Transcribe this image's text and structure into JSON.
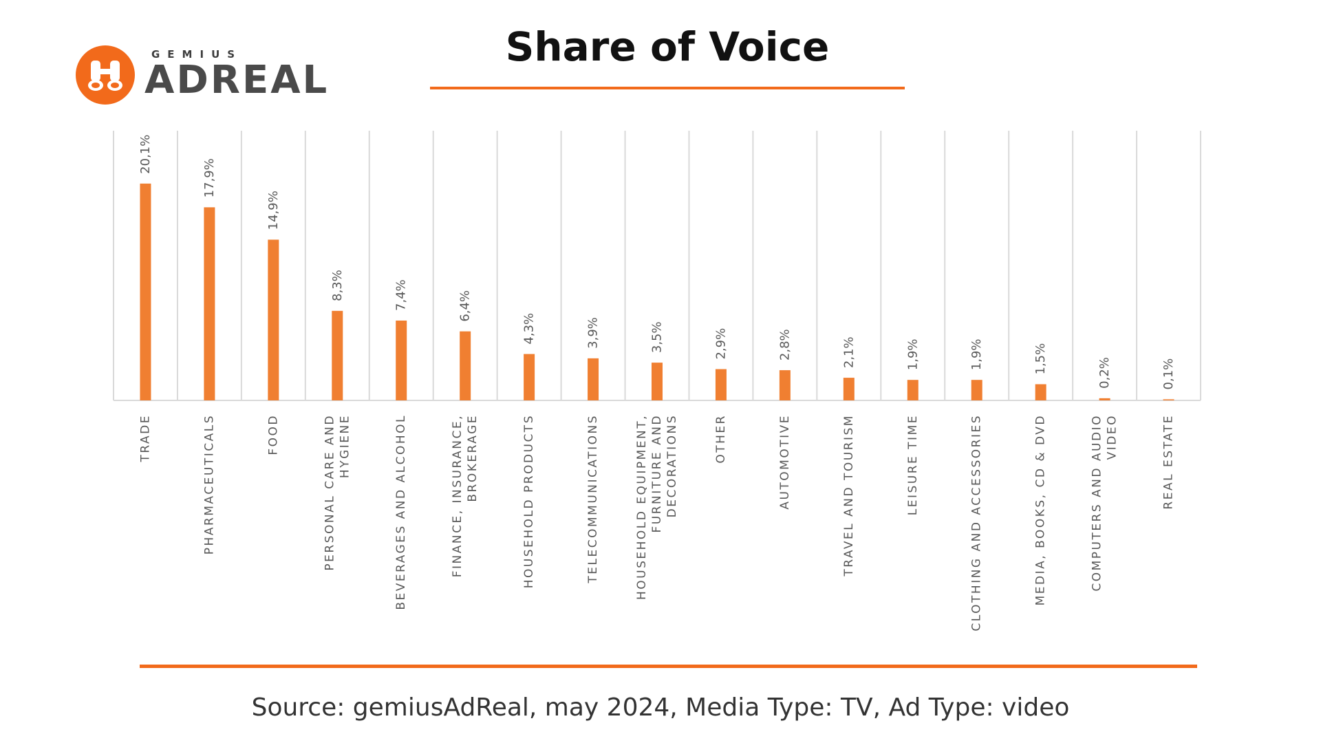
{
  "colors": {
    "accent": "#f07f31",
    "rule": "#f26a1b",
    "grid": "#d9d9d9",
    "label": "#595959"
  },
  "logo": {
    "brand_small": "GEMIUS",
    "brand_large": "ADREAL",
    "icon": "binoculars-icon"
  },
  "title": "Share of Voice",
  "source": "Source: gemiusAdReal, may 2024, Media Type: TV, Ad Type: video",
  "chart_data": {
    "type": "bar",
    "title": "Share of Voice",
    "xlabel": "",
    "ylabel": "",
    "ylim": [
      0,
      25
    ],
    "grid": true,
    "categories": [
      "TRADE",
      "PHARMACEUTICALS",
      "FOOD",
      "PERSONAL CARE AND HYGIENE",
      "BEVERAGES AND ALCOHOL",
      "FINANCE, INSURANCE, BROKERAGE",
      "HOUSEHOLD PRODUCTS",
      "TELECOMMUNICATIONS",
      "HOUSEHOLD EQUIPMENT, FURNITURE AND DECORATIONS",
      "OTHER",
      "AUTOMOTIVE",
      "TRAVEL AND TOURISM",
      "LEISURE TIME",
      "CLOTHING AND ACCESSORIES",
      "MEDIA, BOOKS, CD & DVD",
      "COMPUTERS AND AUDIO VIDEO",
      "REAL ESTATE"
    ],
    "values": [
      20.1,
      17.9,
      14.9,
      8.3,
      7.4,
      6.4,
      4.3,
      3.9,
      3.5,
      2.9,
      2.8,
      2.1,
      1.9,
      1.9,
      1.5,
      0.2,
      0.1
    ],
    "data_labels": [
      "20,1%",
      "17,9%",
      "14,9%",
      "8,3%",
      "7,4%",
      "6,4%",
      "4,3%",
      "3,9%",
      "3,5%",
      "2,9%",
      "2,8%",
      "2,1%",
      "1,9%",
      "1,9%",
      "1,5%",
      "0,2%",
      "0,1%"
    ],
    "category_lines": [
      [
        "TRADE"
      ],
      [
        "PHARMACEUTICALS"
      ],
      [
        "FOOD"
      ],
      [
        "PERSONAL CARE AND",
        "HYGIENE"
      ],
      [
        "BEVERAGES AND ALCOHOL"
      ],
      [
        "FINANCE, INSURANCE,",
        "BROKERAGE"
      ],
      [
        "HOUSEHOLD PRODUCTS"
      ],
      [
        "TELECOMMUNICATIONS"
      ],
      [
        "HOUSEHOLD EQUIPMENT,",
        "FURNITURE AND",
        "DECORATIONS"
      ],
      [
        "OTHER"
      ],
      [
        "AUTOMOTIVE"
      ],
      [
        "TRAVEL AND TOURISM"
      ],
      [
        "LEISURE TIME"
      ],
      [
        "CLOTHING AND ACCESSORIES"
      ],
      [
        "MEDIA, BOOKS, CD & DVD"
      ],
      [
        "COMPUTERS AND AUDIO",
        "VIDEO"
      ],
      [
        "REAL ESTATE"
      ]
    ]
  }
}
